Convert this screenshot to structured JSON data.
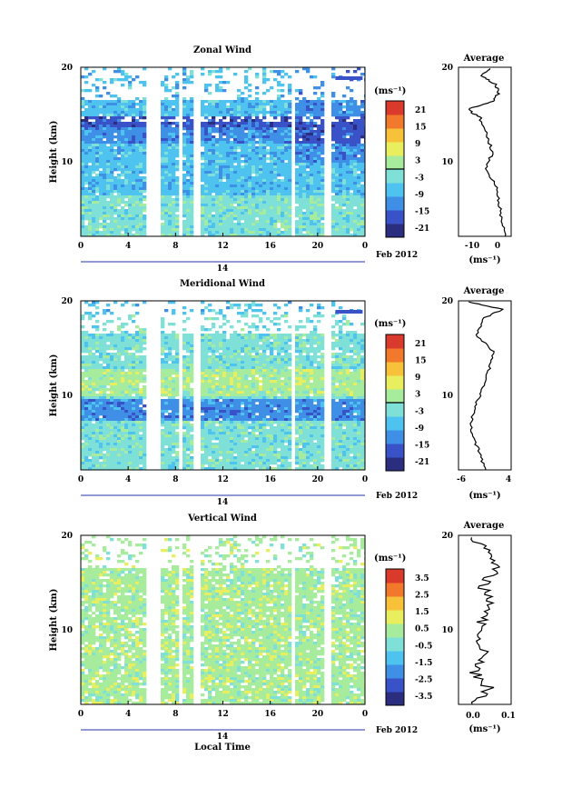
{
  "panels": [
    {
      "title": "Zonal Wind",
      "ylabel": "Height (km)",
      "cb_unit": "(ms⁻¹)",
      "cb_ticks": [
        "21",
        "15",
        "9",
        "3",
        "-3",
        "-9",
        "-15",
        "-21"
      ],
      "avg": {
        "title": "Average",
        "xticks": [
          "-10",
          "0"
        ],
        "xlabel": "(ms⁻¹)"
      }
    },
    {
      "title": "Meridional Wind",
      "ylabel": "Height (km)",
      "cb_unit": "(ms⁻¹)",
      "cb_ticks": [
        "21",
        "15",
        "9",
        "3",
        "-3",
        "-9",
        "-15",
        "-21"
      ],
      "avg": {
        "title": "Average",
        "xticks": [
          "-6",
          "4"
        ],
        "xlabel": "(ms⁻¹)"
      }
    },
    {
      "title": "Vertical Wind",
      "ylabel": "Height (km)",
      "cb_unit": "(ms⁻¹)",
      "cb_ticks": [
        "3.5",
        "2.5",
        "1.5",
        "0.5",
        "-0.5",
        "-1.5",
        "-2.5",
        "-3.5"
      ],
      "avg": {
        "title": "Average",
        "xticks": [
          "0.0",
          "0.1"
        ],
        "xlabel": "(ms⁻¹)"
      }
    }
  ],
  "xticks": [
    "0",
    "4",
    "8",
    "12",
    "16",
    "20",
    "0"
  ],
  "yticks": [
    "20",
    "10"
  ],
  "date_day": "14",
  "date_month": "Feb 2012",
  "xlabel": "Local Time",
  "colors": [
    "#2b2d7e",
    "#3a52c8",
    "#3f8fe6",
    "#4fc3f0",
    "#7fe0d8",
    "#a6ec9c",
    "#e8ee5e",
    "#f7c13a",
    "#f2782b",
    "#d93a2b"
  ],
  "chart_data": [
    {
      "type": "heatmap",
      "title": "Zonal Wind",
      "ylabel": "Height (km)",
      "ylim": [
        0,
        20
      ],
      "x": "Local Time",
      "data_gaps_hours": [
        [
          5.5,
          6.5
        ],
        [
          8,
          8.5
        ],
        [
          9.5,
          10
        ],
        [
          17.5,
          18
        ],
        [
          20.5,
          21
        ]
      ],
      "average_profile": {
        "x_range": [
          -15,
          2
        ],
        "heights_km": [
          0,
          2,
          4,
          6,
          8,
          10,
          12,
          14,
          15,
          16,
          17,
          18,
          19,
          20
        ],
        "values": [
          0,
          -1,
          -2,
          -3,
          -6,
          -4,
          -6,
          -8,
          -12,
          -4,
          -2,
          -3,
          -8,
          -4
        ]
      }
    },
    {
      "type": "heatmap",
      "title": "Meridional Wind",
      "ylabel": "Height (km)",
      "ylim": [
        0,
        20
      ],
      "x": "Local Time",
      "average_profile": {
        "x_range": [
          -7,
          5
        ],
        "heights_km": [
          0,
          2,
          4,
          6,
          8,
          10,
          12,
          14,
          16,
          18,
          19,
          20
        ],
        "values": [
          -1,
          -2,
          -4,
          -4,
          -3,
          -1,
          0,
          1,
          -3,
          -1,
          3,
          -6
        ]
      }
    },
    {
      "type": "heatmap",
      "title": "Vertical Wind",
      "ylabel": "Height (km)",
      "ylim": [
        0,
        20
      ],
      "x": "Local Time",
      "average_profile": {
        "x_range": [
          -0.08,
          0.1
        ],
        "heights_km": [
          0,
          2,
          4,
          6,
          8,
          10,
          12,
          14,
          16,
          18,
          20
        ],
        "values": [
          -0.02,
          0.02,
          -0.03,
          0.01,
          -0.02,
          0.0,
          0.03,
          0.0,
          0.05,
          0.02,
          -0.03
        ]
      }
    }
  ]
}
